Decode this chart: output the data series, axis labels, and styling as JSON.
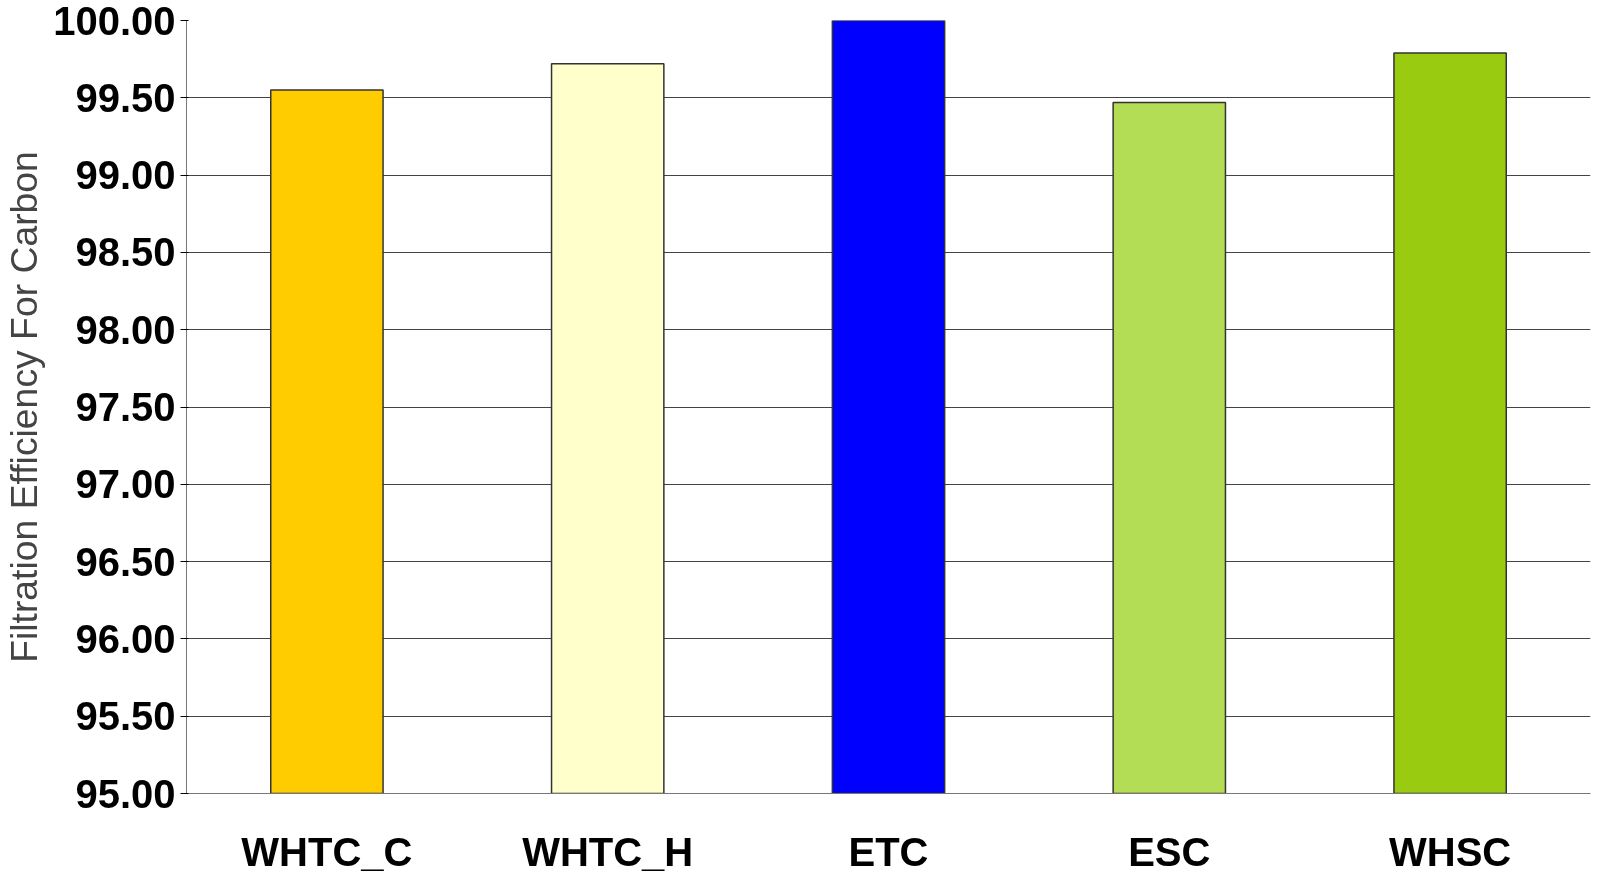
{
  "chart_data": {
    "type": "bar",
    "ylabel": "Filtration Efficiency For Carbon",
    "categories": [
      "WHTC_C",
      "WHTC_H",
      "ETC",
      "ESC",
      "WHSC"
    ],
    "values": [
      99.55,
      99.72,
      100.0,
      99.47,
      99.79
    ],
    "colors": [
      "#ffcc00",
      "#ffffcc",
      "#0000ff",
      "#b3dd55",
      "#99cc11"
    ],
    "ylim": [
      95,
      100
    ],
    "yticks": [
      {
        "value": 95,
        "label": "95.00"
      },
      {
        "value": 95.5,
        "label": "95.50"
      },
      {
        "value": 96,
        "label": "96.00"
      },
      {
        "value": 96.5,
        "label": "96.50"
      },
      {
        "value": 97,
        "label": "97.00"
      },
      {
        "value": 97.5,
        "label": "97.50"
      },
      {
        "value": 98,
        "label": "98.00"
      },
      {
        "value": 98.5,
        "label": "98.50"
      },
      {
        "value": 99,
        "label": "99.00"
      },
      {
        "value": 99.5,
        "label": "99.50"
      },
      {
        "value": 100,
        "label": "100.00"
      }
    ],
    "grid": "y"
  }
}
